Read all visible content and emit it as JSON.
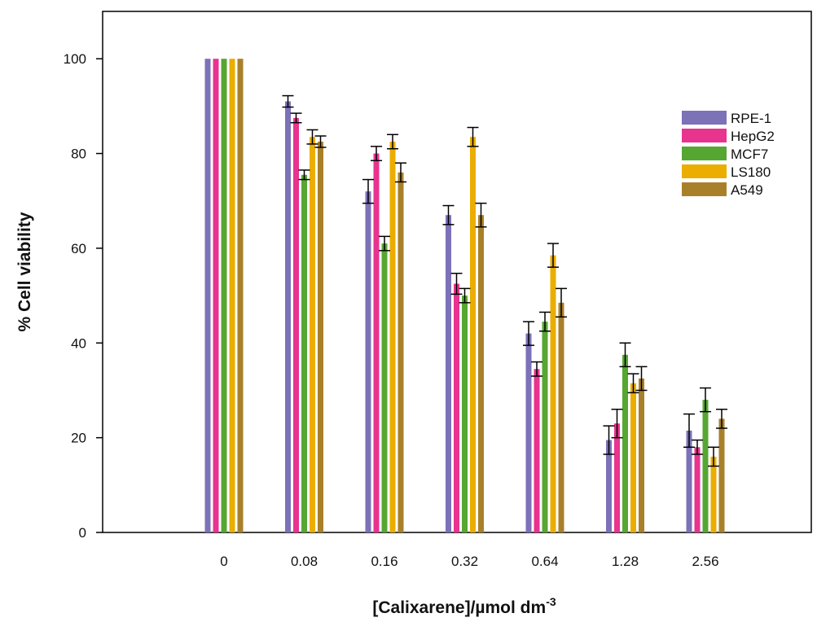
{
  "chart_data": {
    "type": "bar",
    "title": "",
    "ylabel": "% Cell viability",
    "xlabel_main": "[Calixarene]/µmol dm",
    "xlabel_sup": "-3",
    "categories": [
      "0",
      "0.08",
      "0.16",
      "0.32",
      "0.64",
      "1.28",
      "2.56"
    ],
    "ylim": [
      0,
      110
    ],
    "yticks": [
      "0",
      "20",
      "40",
      "60",
      "80",
      "100"
    ],
    "ytick_values": [
      0,
      20,
      40,
      60,
      80,
      100
    ],
    "grid": false,
    "legend_position": "top-right",
    "series": [
      {
        "name": "RPE-1",
        "color": "#7b72b8",
        "values": [
          100,
          91,
          72,
          67,
          42,
          19.5,
          21.5
        ],
        "errors": [
          0,
          1.2,
          2.5,
          2,
          2.5,
          3,
          3.5
        ]
      },
      {
        "name": "HepG2",
        "color": "#e8338f",
        "values": [
          100,
          87.5,
          80,
          52.5,
          34.5,
          23,
          18
        ],
        "errors": [
          0,
          1,
          1.5,
          2.2,
          1.5,
          3,
          1.5
        ]
      },
      {
        "name": "MCF7",
        "color": "#56a632",
        "values": [
          100,
          75.5,
          61,
          50,
          44.5,
          37.5,
          28
        ],
        "errors": [
          0,
          1,
          1.5,
          1.5,
          2,
          2.5,
          2.5
        ]
      },
      {
        "name": "LS180",
        "color": "#ebad00",
        "values": [
          100,
          83.5,
          82.5,
          83.5,
          58.5,
          31.5,
          16
        ],
        "errors": [
          0,
          1.5,
          1.5,
          2,
          2.5,
          2,
          2
        ]
      },
      {
        "name": "A549",
        "color": "#a9802a",
        "values": [
          100,
          82.5,
          76,
          67,
          48.5,
          32.5,
          24
        ],
        "errors": [
          0,
          1.2,
          2,
          2.5,
          3,
          2.5,
          2
        ]
      }
    ]
  }
}
